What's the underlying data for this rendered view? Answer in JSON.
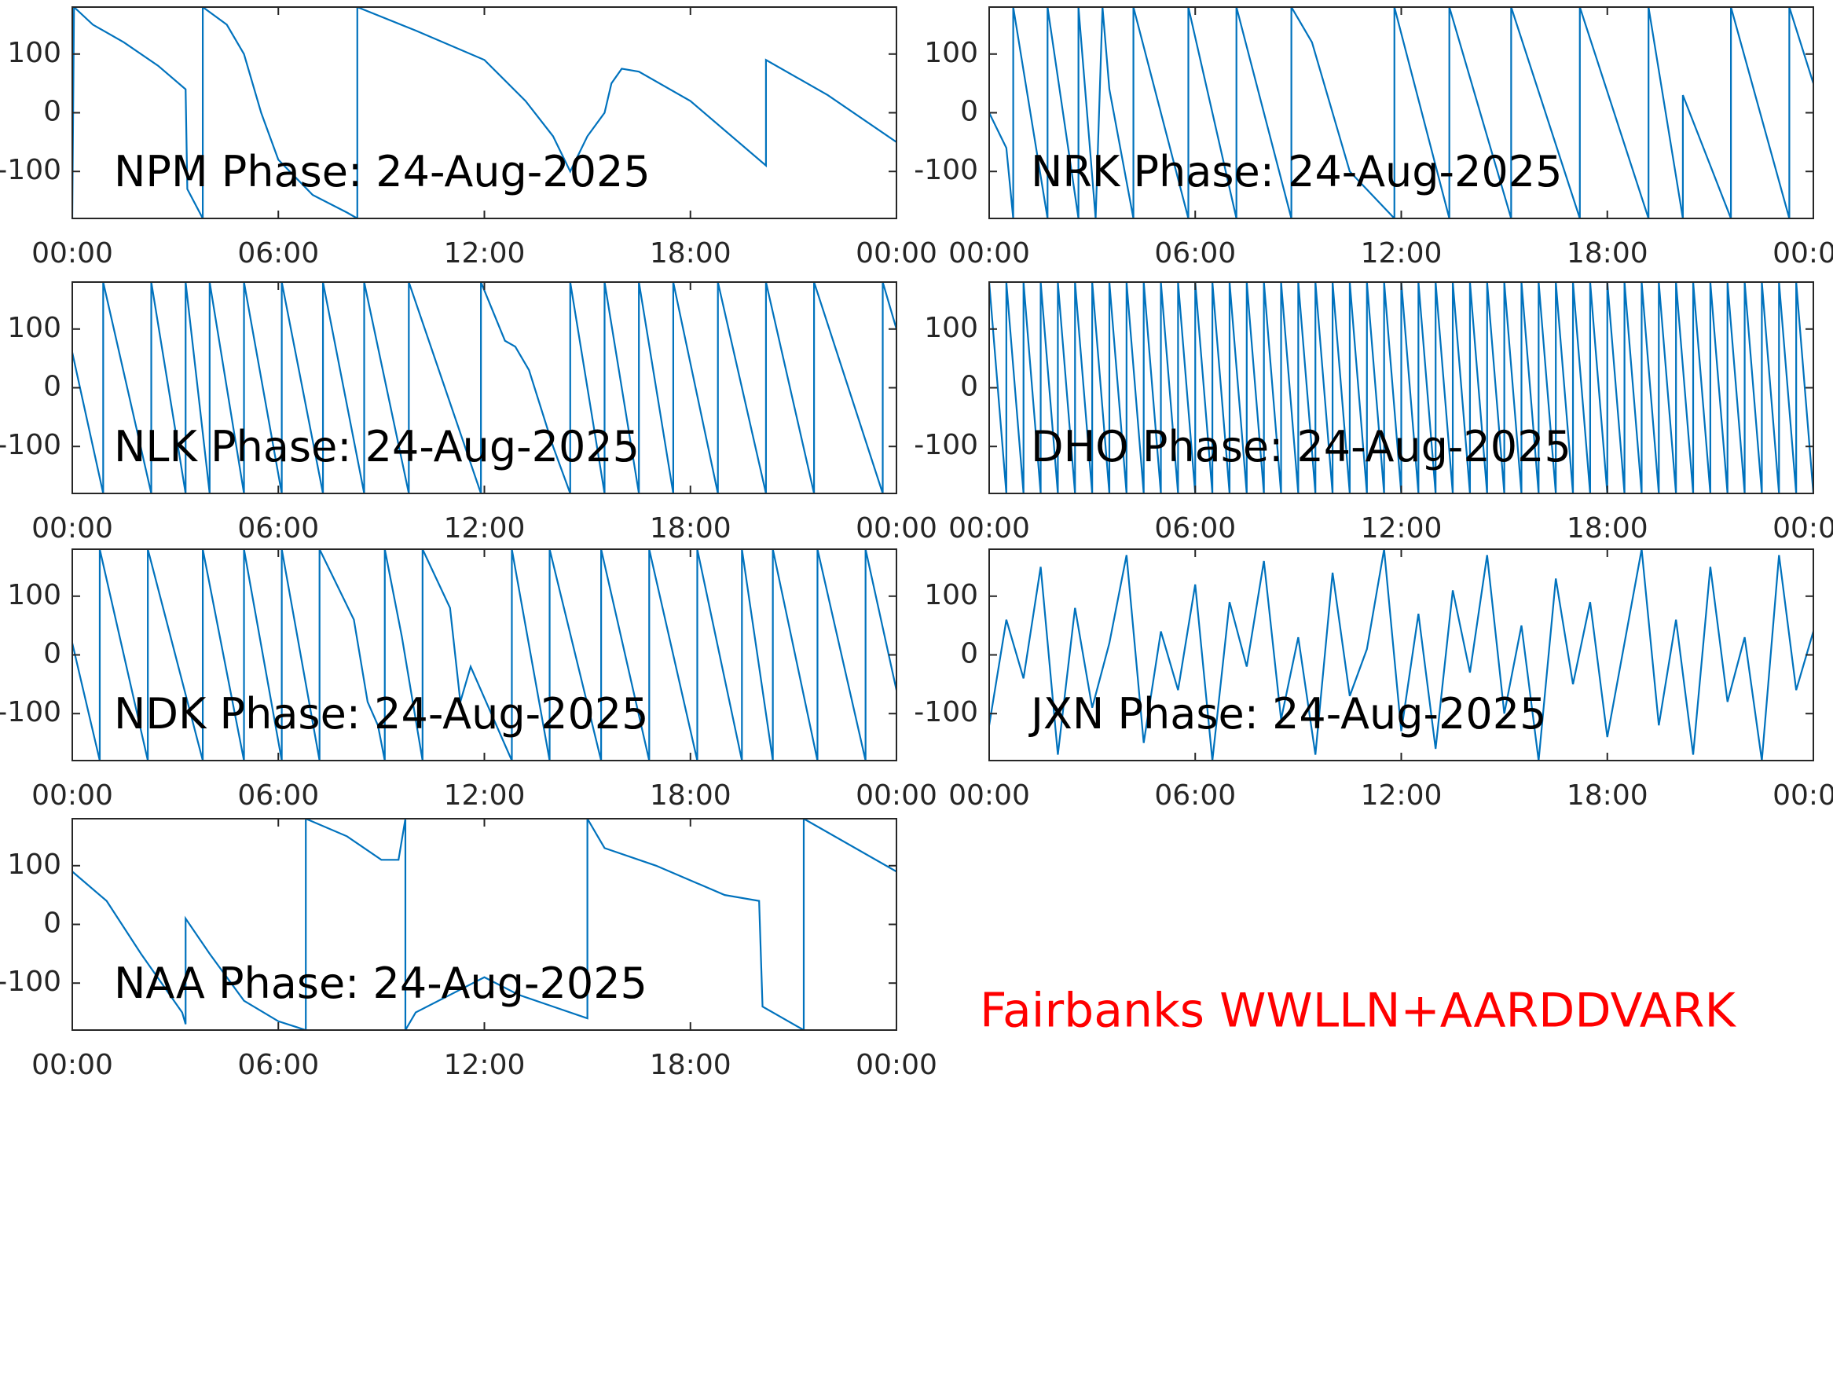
{
  "annotation": "Fairbanks WWLLN+AARDDVARK",
  "annotation_color": "#ff0000",
  "chart_data": [
    {
      "type": "line",
      "title": "NPM Phase: 24-Aug-2025",
      "color": "#0072bd",
      "xlim": [
        0,
        24
      ],
      "xticks": [
        {
          "value": 0,
          "label": "00:00"
        },
        {
          "value": 6,
          "label": "06:00"
        },
        {
          "value": 12,
          "label": "12:00"
        },
        {
          "value": 18,
          "label": "18:00"
        },
        {
          "value": 24,
          "label": "00:00"
        }
      ],
      "ylim": [
        -180,
        180
      ],
      "yticks": [
        -100,
        0,
        100
      ],
      "x": [
        0,
        0.05,
        0.6,
        1.5,
        2.5,
        3.3,
        3.35,
        3.8,
        3.8,
        4.5,
        5,
        5.5,
        6,
        7,
        8,
        8.3,
        8.3,
        10,
        12,
        13.2,
        14,
        14.5,
        15,
        15.5,
        15.7,
        16,
        16.5,
        18,
        20.2,
        20.2,
        22,
        24
      ],
      "values": [
        -180,
        180,
        150,
        120,
        80,
        40,
        -130,
        -180,
        180,
        150,
        100,
        0,
        -80,
        -140,
        -170,
        -180,
        180,
        140,
        90,
        20,
        -40,
        -100,
        -40,
        0,
        50,
        75,
        70,
        20,
        -90,
        90,
        30,
        -50
      ]
    },
    {
      "type": "line",
      "title": "NRK Phase: 24-Aug-2025",
      "color": "#0072bd",
      "xlim": [
        0,
        24
      ],
      "xticks": [
        {
          "value": 0,
          "label": "00:00"
        },
        {
          "value": 6,
          "label": "06:00"
        },
        {
          "value": 12,
          "label": "12:00"
        },
        {
          "value": 18,
          "label": "18:00"
        },
        {
          "value": 24,
          "label": "00:00"
        }
      ],
      "ylim": [
        -180,
        180
      ],
      "yticks": [
        -100,
        0,
        100
      ],
      "x": [
        0,
        0.5,
        0.7,
        0.7,
        1.7,
        1.7,
        2.6,
        2.6,
        3.1,
        3.3,
        3.5,
        4.2,
        4.2,
        5.8,
        5.8,
        7.2,
        7.2,
        8.8,
        8.8,
        9.4,
        10,
        10.5,
        11.8,
        11.8,
        13.4,
        13.4,
        15.2,
        15.2,
        17.2,
        17.2,
        19.2,
        19.2,
        20.2,
        20.2,
        21.6,
        21.6,
        23.3,
        23.3,
        24
      ],
      "values": [
        0,
        -60,
        -180,
        180,
        -180,
        180,
        -180,
        180,
        -180,
        180,
        40,
        -180,
        180,
        -180,
        180,
        -180,
        180,
        -180,
        180,
        120,
        0,
        -100,
        -180,
        180,
        -180,
        180,
        -180,
        180,
        -180,
        180,
        -180,
        180,
        -180,
        30,
        -180,
        180,
        -180,
        180,
        50
      ]
    },
    {
      "type": "line",
      "title": "NLK Phase: 24-Aug-2025",
      "color": "#0072bd",
      "xlim": [
        0,
        24
      ],
      "xticks": [
        {
          "value": 0,
          "label": "00:00"
        },
        {
          "value": 6,
          "label": "06:00"
        },
        {
          "value": 12,
          "label": "12:00"
        },
        {
          "value": 18,
          "label": "18:00"
        },
        {
          "value": 24,
          "label": "00:00"
        }
      ],
      "ylim": [
        -180,
        180
      ],
      "yticks": [
        -100,
        0,
        100
      ],
      "x": [
        0,
        0.9,
        0.9,
        2.3,
        2.3,
        3.3,
        3.3,
        4,
        4,
        5,
        5,
        6.1,
        6.1,
        7.3,
        7.3,
        8.5,
        8.5,
        9.8,
        9.8,
        11.9,
        11.9,
        12.6,
        12.9,
        13.3,
        14,
        14.5,
        14.5,
        15.5,
        15.5,
        16.5,
        16.5,
        17.5,
        17.5,
        18.8,
        18.8,
        20.2,
        20.2,
        21.6,
        21.6,
        23.6,
        23.6,
        24
      ],
      "values": [
        60,
        -180,
        180,
        -180,
        180,
        -180,
        180,
        -180,
        180,
        -180,
        180,
        -180,
        180,
        -180,
        180,
        -180,
        180,
        -180,
        180,
        -180,
        180,
        80,
        70,
        30,
        -100,
        -180,
        180,
        -180,
        180,
        -180,
        180,
        -180,
        180,
        -180,
        180,
        -180,
        180,
        -180,
        180,
        -180,
        180,
        100
      ]
    },
    {
      "type": "line",
      "title": "DHO Phase: 24-Aug-2025",
      "color": "#0072bd",
      "xlim": [
        0,
        24
      ],
      "xticks": [
        {
          "value": 0,
          "label": "00:00"
        },
        {
          "value": 6,
          "label": "06:00"
        },
        {
          "value": 12,
          "label": "12:00"
        },
        {
          "value": 18,
          "label": "18:00"
        },
        {
          "value": 24,
          "label": "00:00"
        }
      ],
      "ylim": [
        -180,
        180
      ],
      "yticks": [
        -100,
        0,
        100
      ],
      "x": [
        0,
        0.5,
        0.5,
        1,
        1,
        1.5,
        1.5,
        2,
        2,
        2.5,
        2.5,
        3,
        3,
        3.5,
        3.5,
        4,
        4,
        4.5,
        4.5,
        5,
        5,
        5.5,
        5.5,
        6,
        6,
        6.5,
        6.5,
        7,
        7,
        7.5,
        7.5,
        8,
        8,
        8.5,
        8.5,
        9,
        9,
        9.5,
        9.5,
        10,
        10,
        10.5,
        10.5,
        11,
        11,
        11.5,
        11.5,
        12,
        12,
        12.5,
        12.5,
        13,
        13,
        13.5,
        13.5,
        14,
        14,
        14.5,
        14.5,
        15,
        15,
        15.5,
        15.5,
        16,
        16,
        16.5,
        16.5,
        17,
        17,
        17.5,
        17.5,
        18,
        18,
        18.5,
        18.5,
        19,
        19,
        19.5,
        19.5,
        20,
        20,
        20.5,
        20.5,
        21,
        21,
        21.5,
        21.5,
        22,
        22,
        22.5,
        22.5,
        23,
        23,
        23.5,
        23.5,
        24
      ],
      "values": [
        180,
        -180,
        180,
        -180,
        180,
        -180,
        180,
        -180,
        180,
        -180,
        180,
        -180,
        180,
        -180,
        180,
        -180,
        180,
        -180,
        180,
        -180,
        180,
        -180,
        180,
        -180,
        180,
        -180,
        180,
        -180,
        180,
        -180,
        180,
        -180,
        180,
        -180,
        180,
        -180,
        180,
        -180,
        180,
        -180,
        180,
        -180,
        180,
        -180,
        180,
        -180,
        180,
        -180,
        180,
        -180,
        180,
        -180,
        180,
        -180,
        180,
        -180,
        180,
        -180,
        180,
        -180,
        180,
        -180,
        180,
        -180,
        180,
        -180,
        180,
        -180,
        180,
        -180,
        180,
        -180,
        180,
        -180,
        180,
        -180,
        180,
        -180,
        180,
        -180,
        180,
        -180,
        180,
        -180,
        180,
        -180,
        180,
        -180,
        180,
        -180,
        180,
        -180,
        180,
        -180,
        180,
        -180
      ]
    },
    {
      "type": "line",
      "title": "NDK Phase: 24-Aug-2025",
      "color": "#0072bd",
      "xlim": [
        0,
        24
      ],
      "xticks": [
        {
          "value": 0,
          "label": "00:00"
        },
        {
          "value": 6,
          "label": "06:00"
        },
        {
          "value": 12,
          "label": "12:00"
        },
        {
          "value": 18,
          "label": "18:00"
        },
        {
          "value": 24,
          "label": "00:00"
        }
      ],
      "ylim": [
        -180,
        180
      ],
      "yticks": [
        -100,
        0,
        100
      ],
      "x": [
        0,
        0.8,
        0.8,
        2.2,
        2.2,
        3.8,
        3.8,
        5,
        5,
        6.1,
        6.1,
        7.2,
        7.2,
        8.2,
        8.6,
        8.9,
        9.1,
        9.1,
        9.6,
        10.2,
        10.2,
        11,
        11.3,
        11.6,
        12.2,
        12.8,
        12.8,
        13.9,
        13.9,
        15.4,
        15.4,
        16.8,
        16.8,
        18.2,
        18.2,
        19.5,
        19.5,
        20.4,
        20.4,
        21.7,
        21.7,
        23.1,
        23.1,
        24
      ],
      "values": [
        20,
        -180,
        180,
        -180,
        180,
        -180,
        180,
        -180,
        180,
        -180,
        180,
        -180,
        180,
        60,
        -80,
        -120,
        -180,
        180,
        30,
        -180,
        180,
        80,
        -80,
        -20,
        -100,
        -180,
        180,
        -180,
        180,
        -180,
        180,
        -180,
        180,
        -180,
        180,
        -180,
        180,
        -180,
        180,
        -180,
        180,
        -180,
        180,
        -60
      ]
    },
    {
      "type": "line",
      "title": "JXN Phase: 24-Aug-2025",
      "color": "#0072bd",
      "xlim": [
        0,
        24
      ],
      "xticks": [
        {
          "value": 0,
          "label": "00:00"
        },
        {
          "value": 6,
          "label": "06:00"
        },
        {
          "value": 12,
          "label": "12:00"
        },
        {
          "value": 18,
          "label": "18:00"
        },
        {
          "value": 24,
          "label": "00:00"
        }
      ],
      "ylim": [
        -180,
        180
      ],
      "yticks": [
        -100,
        0,
        100
      ],
      "x": [
        0,
        0.5,
        1,
        1.5,
        2,
        2.5,
        3,
        3.5,
        4,
        4.5,
        5,
        5.5,
        6,
        6.5,
        7,
        7.5,
        8,
        8.5,
        9,
        9.5,
        10,
        10.5,
        11,
        11.5,
        12,
        12.5,
        13,
        13.5,
        14,
        14.5,
        15,
        15.5,
        16,
        16.5,
        17,
        17.5,
        18,
        18.5,
        19,
        19.5,
        20,
        20.5,
        21,
        21.5,
        22,
        22.5,
        23,
        23.5,
        24
      ],
      "values": [
        -120,
        60,
        -40,
        150,
        -170,
        80,
        -90,
        20,
        170,
        -150,
        40,
        -60,
        120,
        -180,
        90,
        -20,
        160,
        -110,
        30,
        -170,
        140,
        -70,
        10,
        180,
        -130,
        70,
        -160,
        110,
        -30,
        170,
        -100,
        50,
        -180,
        130,
        -50,
        90,
        -140,
        20,
        180,
        -120,
        60,
        -170,
        150,
        -80,
        30,
        -180,
        170,
        -60,
        40
      ]
    },
    {
      "type": "line",
      "title": "NAA Phase: 24-Aug-2025",
      "color": "#0072bd",
      "xlim": [
        0,
        24
      ],
      "xticks": [
        {
          "value": 0,
          "label": "00:00"
        },
        {
          "value": 6,
          "label": "06:00"
        },
        {
          "value": 12,
          "label": "12:00"
        },
        {
          "value": 18,
          "label": "18:00"
        },
        {
          "value": 24,
          "label": "00:00"
        }
      ],
      "ylim": [
        -180,
        180
      ],
      "yticks": [
        -100,
        0,
        100
      ],
      "x": [
        0,
        1,
        2,
        3.2,
        3.3,
        3.3,
        4,
        5,
        6,
        6.8,
        6.8,
        8,
        9,
        9.5,
        9.7,
        9.7,
        10,
        11,
        12,
        13,
        14,
        15,
        15,
        15.5,
        17,
        19,
        20,
        20.1,
        21.3,
        21.3,
        24
      ],
      "values": [
        90,
        40,
        -50,
        -150,
        -170,
        10,
        -50,
        -130,
        -165,
        -180,
        180,
        150,
        110,
        110,
        180,
        -180,
        -150,
        -120,
        -90,
        -120,
        -140,
        -160,
        180,
        130,
        100,
        50,
        40,
        -140,
        -180,
        180,
        90
      ]
    }
  ]
}
